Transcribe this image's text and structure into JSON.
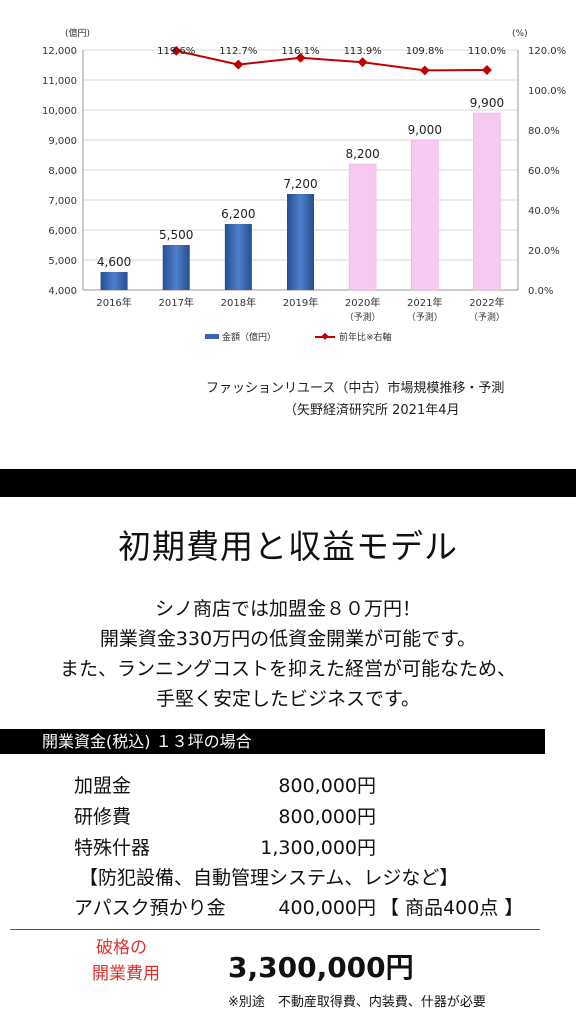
{
  "chart_data": {
    "type": "bar",
    "categories": [
      "2016年",
      "2017年",
      "2018年",
      "2019年",
      "2020年",
      "2021年",
      "2022年"
    ],
    "category_sublabels": [
      "",
      "",
      "",
      "",
      "（予測）",
      "（予測）",
      "（予測）"
    ],
    "series": [
      {
        "name": "金額（億円）",
        "values": [
          4600,
          5500,
          6200,
          7200,
          8200,
          9000,
          9900
        ],
        "value_labels": [
          "4,600",
          "5,500",
          "6,200",
          "7,200",
          "8,200",
          "9,000",
          "9,900"
        ],
        "colors": [
          "#3a66b0",
          "#3a66b0",
          "#3a66b0",
          "#3a66b0",
          "#f6c9f1",
          "#f6c9f1",
          "#f6c9f1"
        ]
      },
      {
        "name": "前年比※右軸",
        "type": "line",
        "axis": "right",
        "values": [
          null,
          119.6,
          112.7,
          116.1,
          113.9,
          109.8,
          110.0
        ],
        "value_labels": [
          "",
          "119.6%",
          "112.7%",
          "116.1%",
          "113.9%",
          "109.8%",
          "110.0%"
        ],
        "color": "#c00000"
      }
    ],
    "ylabel_left": "(億円)",
    "ylabel_right": "(%)",
    "ylim_left": [
      4000,
      12000
    ],
    "yticks_left": [
      "4,000",
      "5,000",
      "6,000",
      "7,000",
      "8,000",
      "9,000",
      "10,000",
      "11,000",
      "12,000"
    ],
    "ylim_right": [
      0,
      120
    ],
    "yticks_right": [
      "0.0%",
      "20.0%",
      "40.0%",
      "60.0%",
      "80.0%",
      "100.0%",
      "120.0%"
    ],
    "grid": true,
    "legend": "bottom"
  },
  "source": {
    "line1": "ファッションリユース（中古）市場規模推移・予測",
    "line2": "（矢野経済研究所 2021年4月"
  },
  "section_title": "初期費用と収益モデル",
  "intro_lines": [
    "シノ商店では加盟金８０万円！",
    "開業資金330万円の低資金開業が可能です。",
    "また、ランニングコストを抑えた経営が可能なため、",
    "手堅く安定したビジネスです。"
  ],
  "subhead": "開業資金(税込) １３坪の場合",
  "costs": {
    "fee_label": "加盟金",
    "fee_value": "800,000円",
    "training_label": "研修費",
    "training_value": "800,000円",
    "fixtures_label": "特殊什器",
    "fixtures_value": "1,300,000円",
    "fixtures_note": "【防犯設備、自動管理システム、レジなど】",
    "deposit_label": "アパスク預かり金",
    "deposit_value": "400,000円",
    "deposit_note": "【 商品400点 】"
  },
  "total": {
    "label_line1": "破格の",
    "label_line2": "開業費用",
    "value": "3,300,000円",
    "note": "※別途　不動産取得費、内装費、什器が必要"
  },
  "colors": {
    "accent_red": "#e0312b",
    "bar_actual": "#3a66b0",
    "bar_forecast": "#f6c9f1",
    "line": "#c00000"
  }
}
